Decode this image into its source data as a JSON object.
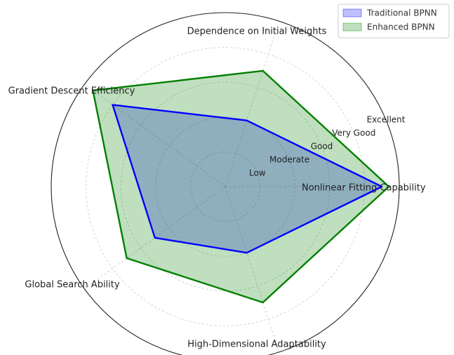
{
  "chart_data": {
    "type": "radar",
    "title": "",
    "axes": [
      "Nonlinear Fitting Capability",
      "Dependence on Initial Weights",
      "Gradient Descent Efficiency",
      "Global Search Ability",
      "High-Dimensional Adaptability"
    ],
    "levels": [
      "Low",
      "Moderate",
      "Good",
      "Very Good",
      "Excellent"
    ],
    "rlim": [
      0,
      5
    ],
    "grid": true,
    "legend": "top-right",
    "series": [
      {
        "name": "Traditional BPNN",
        "values": [
          4.5,
          2.0,
          4.0,
          2.5,
          2.0
        ],
        "line_color": "#0000ff",
        "fill_color": "#0000ff"
      },
      {
        "name": "Enhanced BPNN",
        "values": [
          4.7,
          3.5,
          4.7,
          3.5,
          3.5
        ],
        "line_color": "#008000",
        "fill_color": "#008000"
      }
    ]
  }
}
